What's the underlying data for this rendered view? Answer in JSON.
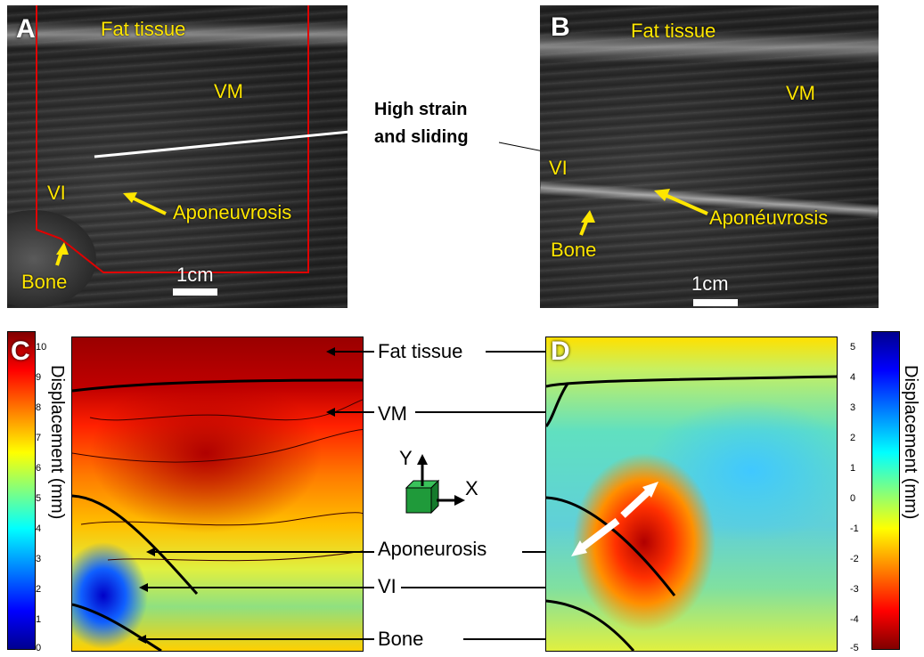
{
  "panel_a": {
    "letter": "A",
    "fat": "Fat tissue",
    "vm": "VM",
    "vi": "VI",
    "aponeurosis": "Aponeuvrosis",
    "bone": "Bone",
    "scale": "1cm"
  },
  "panel_b": {
    "letter": "B",
    "fat": "Fat tissue",
    "vm": "VM",
    "vi": "VI",
    "aponeurosis": "Aponéuvrosis",
    "bone": "Bone",
    "scale": "1cm"
  },
  "center_note": {
    "line1": "High strain",
    "line2": "and sliding"
  },
  "panel_c": {
    "letter": "C",
    "colorbar_label": "Displacement (mm)",
    "ticks": [
      "10",
      "9",
      "8",
      "7",
      "6",
      "5",
      "4",
      "3",
      "2",
      "1",
      "0"
    ]
  },
  "panel_d": {
    "letter": "D",
    "colorbar_label": "Displacement (mm)",
    "ticks": [
      "5",
      "4",
      "3",
      "2",
      "1",
      "0",
      "-1",
      "-2",
      "-3",
      "-4",
      "-5"
    ]
  },
  "middle_labels": {
    "fat": "Fat tissue",
    "vm": "VM",
    "aponeurosis": "Aponeurosis",
    "vi": "VI",
    "bone": "Bone"
  },
  "axes": {
    "y": "Y",
    "x": "X"
  },
  "colors": {
    "yellow_label": "#ffe600",
    "roi": "#e00000",
    "axis_cube": "#1f9a3a"
  }
}
